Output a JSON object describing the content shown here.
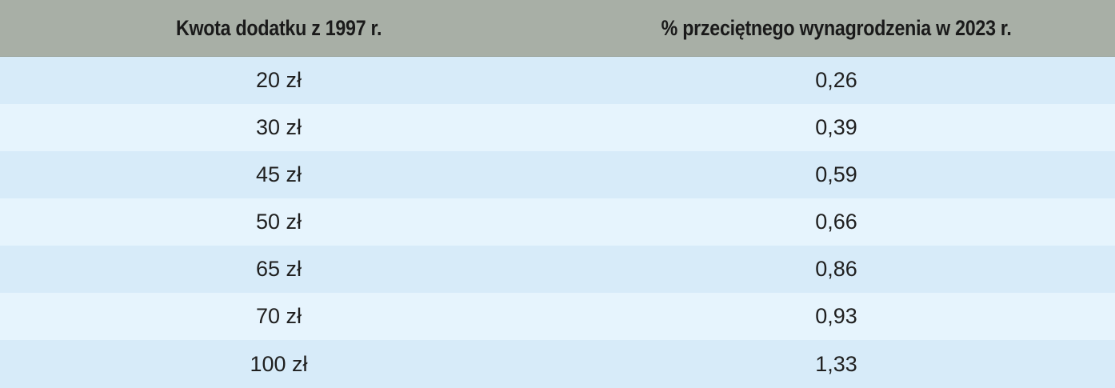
{
  "table": {
    "headers": [
      "Kwota dodatku z 1997 r.",
      "% przeciętnego wynagrodzenia w 2023 r."
    ],
    "rows": [
      [
        "20 zł",
        "0,26"
      ],
      [
        "30 zł",
        "0,39"
      ],
      [
        "45 zł",
        "0,59"
      ],
      [
        "50 zł",
        "0,66"
      ],
      [
        "65 zł",
        "0,86"
      ],
      [
        "70 zł",
        "0,93"
      ],
      [
        "100 zł",
        "1,33"
      ]
    ]
  },
  "colors": {
    "header_bg": "#a8afa6",
    "row_odd_bg": "#d7ebf9",
    "row_even_bg": "#e6f4fd"
  }
}
